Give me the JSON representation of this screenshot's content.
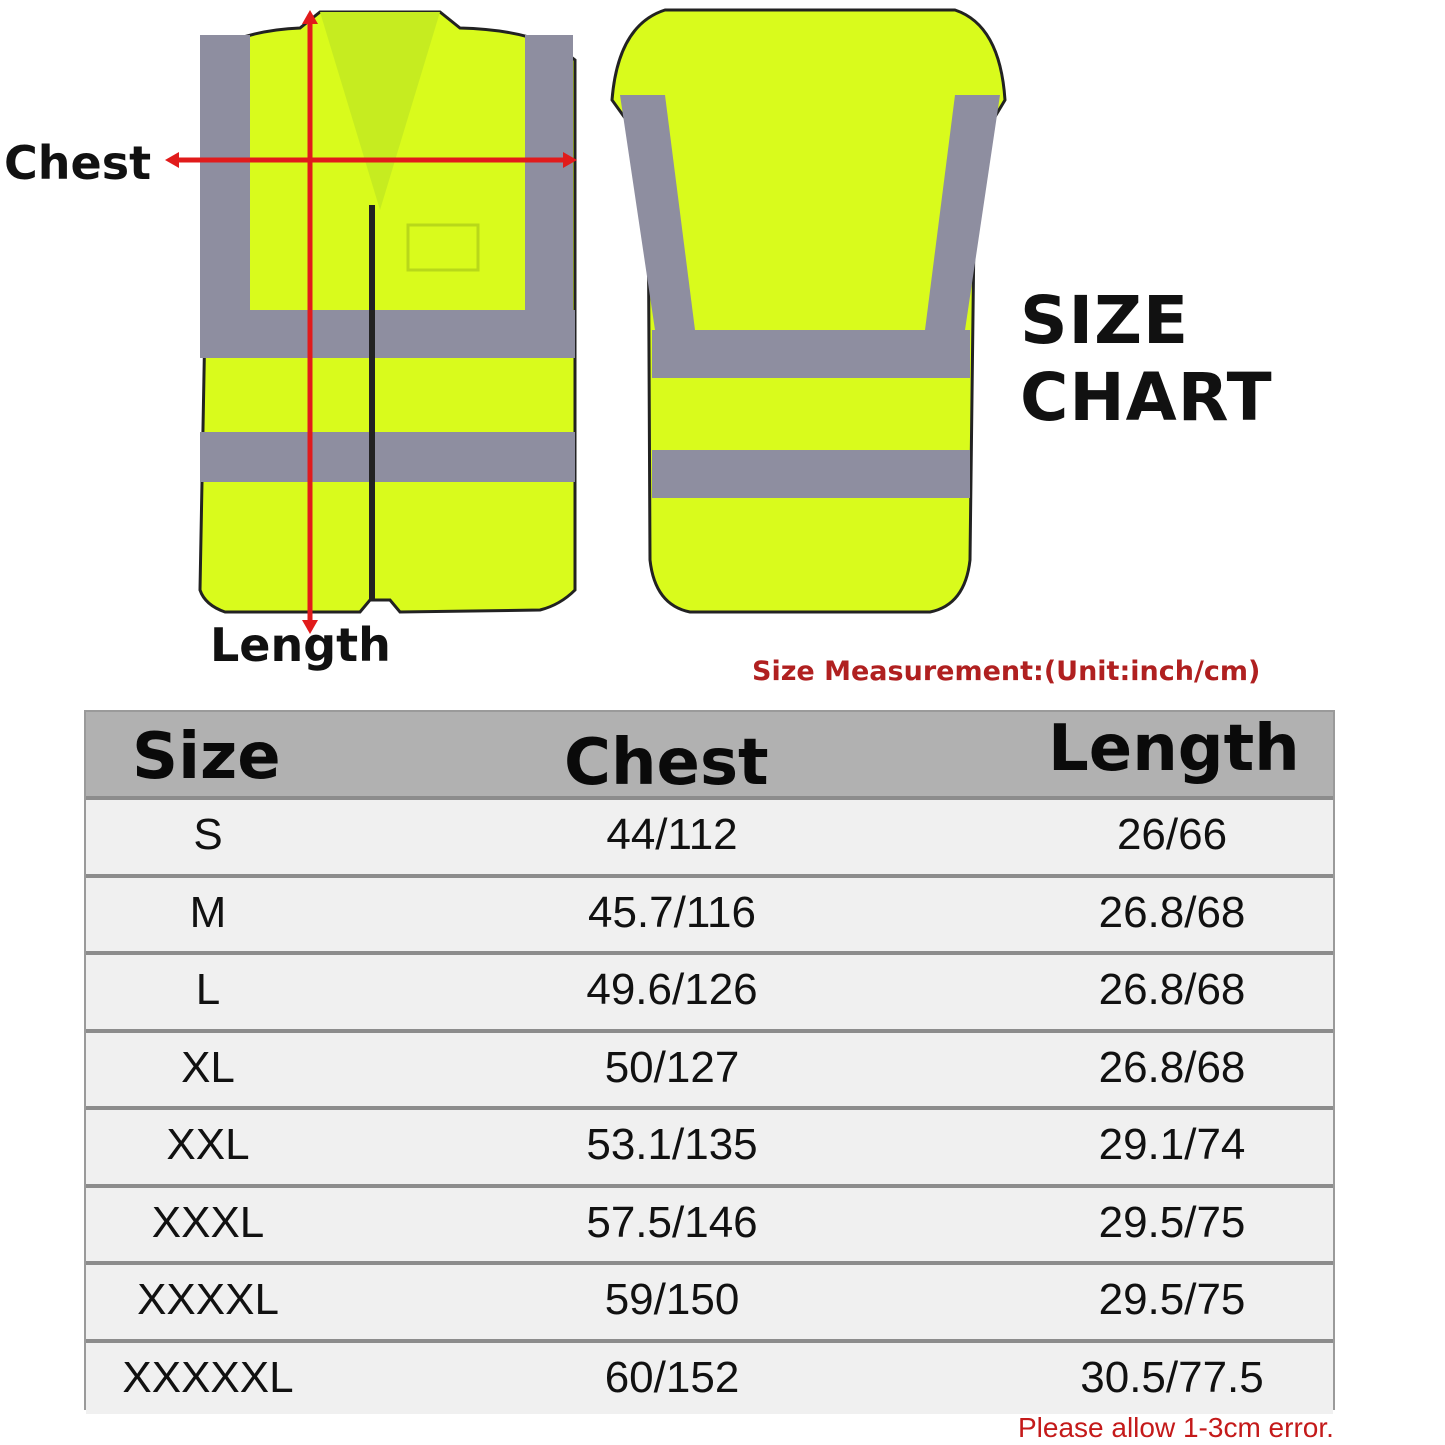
{
  "labels": {
    "chest": "Chest",
    "length": "Length"
  },
  "title": "SIZE CHART",
  "unit_note": "Size Measurement:(Unit:inch/cm)",
  "table": {
    "headers": [
      "Size",
      "Chest",
      "Length"
    ],
    "rows": [
      {
        "size": "S",
        "chest": "44/112",
        "length": "26/66"
      },
      {
        "size": "M",
        "chest": "45.7/116",
        "length": "26.8/68"
      },
      {
        "size": "L",
        "chest": "49.6/126",
        "length": "26.8/68"
      },
      {
        "size": "XL",
        "chest": "50/127",
        "length": "26.8/68"
      },
      {
        "size": "XXL",
        "chest": "53.1/135",
        "length": "29.1/74"
      },
      {
        "size": "XXXL",
        "chest": "57.5/146",
        "length": "29.5/75"
      },
      {
        "size": "XXXXL",
        "chest": "59/150",
        "length": "29.5/75"
      },
      {
        "size": "XXXXXL",
        "chest": "60/152",
        "length": "30.5/77.5"
      }
    ]
  },
  "error_note": "Please allow 1-3cm error.",
  "colors": {
    "vest": "#d9fb1c",
    "reflective": "#8e8ea0",
    "arrow": "#e11b1b",
    "note": "#c41a1a"
  }
}
